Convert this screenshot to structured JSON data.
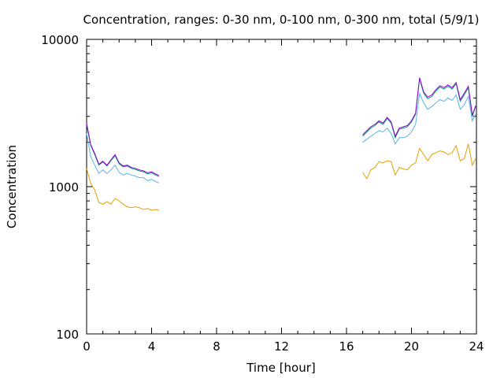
{
  "chart_data": {
    "type": "line",
    "title": "Concentration, ranges: 0-30 nm, 0-100 nm, 0-300 nm, total (5/9/1)",
    "xlabel": "Time [hour]",
    "ylabel": "Concentration",
    "xlim": [
      0,
      24
    ],
    "ylim": [
      100,
      10000
    ],
    "yscale": "log",
    "grid": false,
    "legend": "none",
    "xticks": [
      "0",
      "4",
      "8",
      "12",
      "16",
      "20",
      "24"
    ],
    "yticks": [
      "100",
      "1000",
      "10000"
    ],
    "series": [
      {
        "color": "#e69f00",
        "segments": [
          {
            "x": [
              0.0,
              0.25,
              0.5,
              0.75,
              1.0,
              1.25,
              1.5,
              1.75,
              2.0,
              2.25,
              2.5,
              2.75,
              3.0,
              3.25,
              3.5,
              3.75,
              4.0,
              4.25,
              4.45
            ],
            "y": [
              1330,
              1050,
              950,
              780,
              760,
              790,
              760,
              830,
              800,
              760,
              730,
              720,
              730,
              720,
              700,
              710,
              690,
              700,
              690
            ]
          },
          {
            "x": [
              17.0,
              17.25,
              17.5,
              17.75,
              18.0,
              18.25,
              18.5,
              18.75,
              19.0,
              19.25,
              19.5,
              19.75,
              20.0,
              20.25,
              20.5,
              20.75,
              21.0,
              21.25,
              21.5,
              21.75,
              22.0,
              22.25,
              22.5,
              22.75,
              23.0,
              23.25,
              23.5,
              23.75,
              23.95
            ],
            "y": [
              1250,
              1130,
              1300,
              1350,
              1480,
              1450,
              1500,
              1480,
              1200,
              1350,
              1320,
              1300,
              1400,
              1450,
              1820,
              1650,
              1500,
              1650,
              1700,
              1750,
              1720,
              1650,
              1700,
              1900,
              1500,
              1550,
              1950,
              1400,
              1550
            ]
          }
        ]
      },
      {
        "color": "#56b4e9",
        "segments": [
          {
            "x": [
              0.0,
              0.25,
              0.5,
              0.75,
              1.0,
              1.25,
              1.5,
              1.75,
              2.0,
              2.25,
              2.5,
              2.75,
              3.0,
              3.25,
              3.5,
              3.75,
              4.0,
              4.25,
              4.45
            ],
            "y": [
              2300,
              1600,
              1400,
              1230,
              1300,
              1230,
              1300,
              1400,
              1250,
              1200,
              1230,
              1200,
              1180,
              1150,
              1150,
              1100,
              1120,
              1080,
              1060
            ]
          },
          {
            "x": [
              17.0,
              17.25,
              17.5,
              17.75,
              18.0,
              18.25,
              18.5,
              18.75,
              19.0,
              19.25,
              19.5,
              19.75,
              20.0,
              20.25,
              20.5,
              20.75,
              21.0,
              21.25,
              21.5,
              21.75,
              22.0,
              22.25,
              22.5,
              22.75,
              23.0,
              23.25,
              23.5,
              23.75,
              23.95
            ],
            "y": [
              2000,
              2100,
              2200,
              2300,
              2400,
              2350,
              2500,
              2300,
              1950,
              2150,
              2150,
              2200,
              2350,
              2650,
              4300,
              3700,
              3350,
              3500,
              3700,
              3900,
              3800,
              4000,
              3850,
              4200,
              3350,
              3600,
              4100,
              2800,
              3100
            ]
          }
        ]
      },
      {
        "color": "#009e73",
        "segments": [
          {
            "x": [
              0.0,
              0.25,
              0.5,
              0.75,
              1.0,
              1.25,
              1.5,
              1.75,
              2.0,
              2.25,
              2.5,
              2.75,
              3.0,
              3.25,
              3.5,
              3.75,
              4.0,
              4.25,
              4.45
            ],
            "y": [
              2650,
              1900,
              1650,
              1400,
              1470,
              1380,
              1500,
              1620,
              1430,
              1360,
              1380,
              1330,
              1310,
              1280,
              1260,
              1220,
              1240,
              1200,
              1170
            ]
          },
          {
            "x": [
              17.0,
              17.25,
              17.5,
              17.75,
              18.0,
              18.25,
              18.5,
              18.75,
              19.0,
              19.25,
              19.5,
              19.75,
              20.0,
              20.25,
              20.5,
              20.75,
              21.0,
              21.25,
              21.5,
              21.75,
              22.0,
              22.25,
              22.5,
              22.75,
              23.0,
              23.25,
              23.5,
              23.75,
              23.95
            ],
            "y": [
              2200,
              2350,
              2500,
              2600,
              2750,
              2650,
              2900,
              2700,
              2150,
              2450,
              2500,
              2550,
              2750,
              3100,
              5400,
              4300,
              3950,
              4100,
              4450,
              4750,
              4600,
              4800,
              4600,
              5000,
              3800,
              4200,
              4700,
              3000,
              3500
            ]
          }
        ]
      },
      {
        "color": "#9400d3",
        "segments": [
          {
            "x": [
              0.0,
              0.25,
              0.5,
              0.75,
              1.0,
              1.25,
              1.5,
              1.75,
              2.0,
              2.25,
              2.5,
              2.75,
              3.0,
              3.25,
              3.5,
              3.75,
              4.0,
              4.25,
              4.45
            ],
            "y": [
              2700,
              1930,
              1680,
              1420,
              1490,
              1400,
              1520,
              1650,
              1450,
              1380,
              1400,
              1350,
              1330,
              1300,
              1280,
              1240,
              1260,
              1220,
              1190
            ]
          },
          {
            "x": [
              17.0,
              17.25,
              17.5,
              17.75,
              18.0,
              18.25,
              18.5,
              18.75,
              19.0,
              19.25,
              19.5,
              19.75,
              20.0,
              20.25,
              20.5,
              20.75,
              21.0,
              21.25,
              21.5,
              21.75,
              22.0,
              22.25,
              22.5,
              22.75,
              23.0,
              23.25,
              23.5,
              23.75,
              23.95
            ],
            "y": [
              2250,
              2400,
              2550,
              2650,
              2800,
              2700,
              2950,
              2750,
              2200,
              2500,
              2550,
              2600,
              2800,
              3150,
              5500,
              4400,
              4050,
              4200,
              4550,
              4850,
              4700,
              4900,
              4700,
              5100,
              3900,
              4300,
              4800,
              3050,
              3550
            ]
          }
        ]
      }
    ]
  }
}
